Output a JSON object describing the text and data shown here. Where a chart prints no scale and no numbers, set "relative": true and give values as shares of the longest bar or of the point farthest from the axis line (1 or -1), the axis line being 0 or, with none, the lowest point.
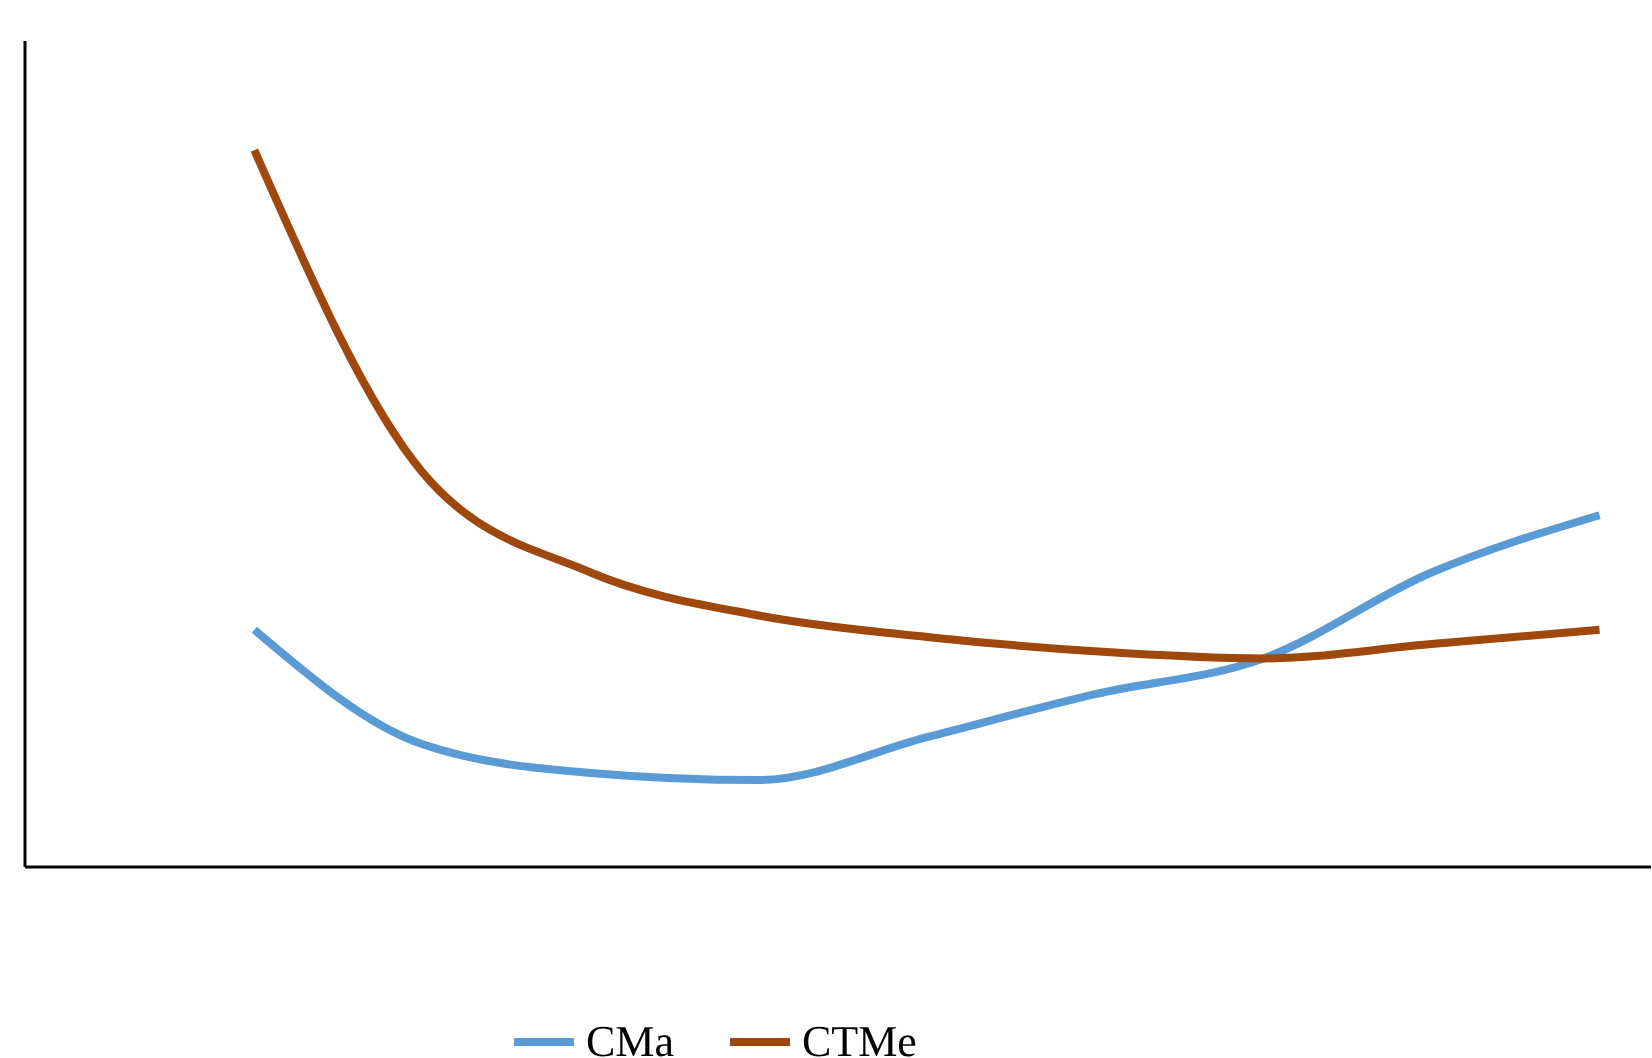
{
  "chart_data": {
    "type": "line",
    "relative": true,
    "categories": [
      null,
      null,
      null,
      null,
      null,
      null,
      null,
      null,
      null
    ],
    "legend": "bottom",
    "grid": false,
    "marker": "none",
    "series": [
      {
        "name": "CMa",
        "color": "#5b9bd5",
        "values": [
          0.33,
          0.17,
          0.13,
          0.12,
          0.18,
          0.24,
          0.29,
          0.41,
          0.49
        ]
      },
      {
        "name": "CTMe",
        "color": "#9e480e",
        "values": [
          1,
          0.55,
          0.41,
          0.35,
          0.32,
          0.3,
          0.29,
          0.31,
          0.33
        ]
      }
    ]
  }
}
